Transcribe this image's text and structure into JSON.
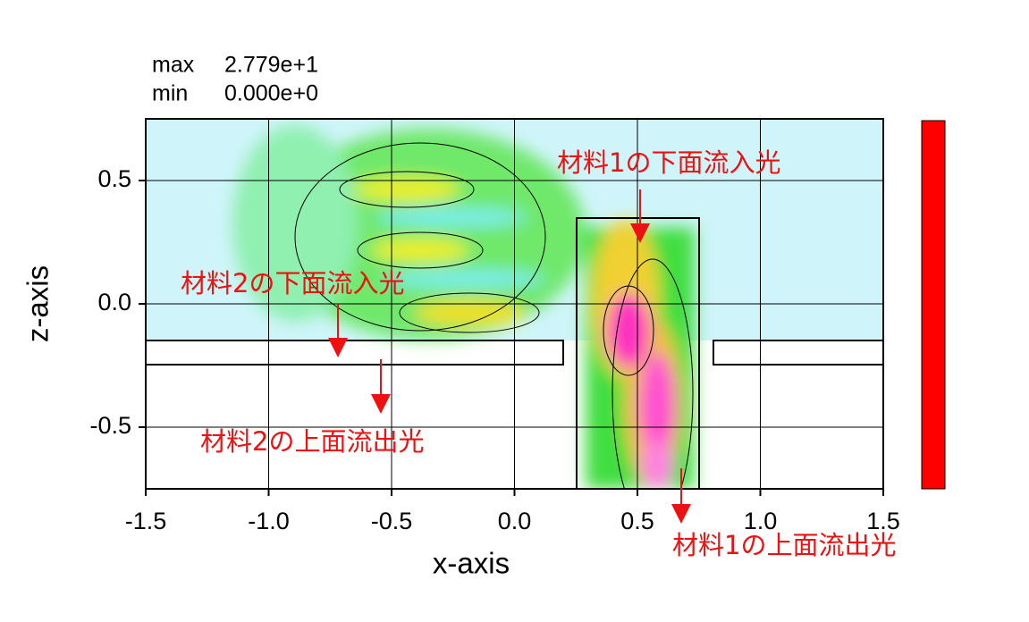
{
  "chart_data": {
    "type": "field",
    "x_label": "x-axis",
    "y_label": "z-axis",
    "xlim": [
      -1.5,
      1.5
    ],
    "ylim": [
      -0.75,
      0.75
    ],
    "xticks": [
      -1.5,
      {
        "value": -1,
        "label": "-1.0"
      },
      -0.5,
      {
        "value": 0,
        "label": "0.0"
      },
      0.5,
      {
        "value": 1,
        "label": "1.0"
      },
      1.5
    ],
    "yticks": [
      -0.5,
      {
        "value": 0,
        "label": "0.0"
      },
      0.5
    ],
    "grid": true,
    "stats": [
      {
        "name": "max",
        "value": 27.79,
        "value_label": "2.779e+1"
      },
      {
        "name": "min",
        "value": 0,
        "value_label": "0.000e+0"
      }
    ],
    "colorbar": [
      "#ff0000",
      "#ff00ff",
      "#ffff00",
      "#00ff00",
      "#00ffff",
      "#ffffff"
    ],
    "annotation_color": "#ee1111",
    "annotations": [
      "材料1の下面流入光",
      "材料2の下面流入光",
      "材料2の上面流出光",
      "材料1の上面流出光"
    ]
  }
}
